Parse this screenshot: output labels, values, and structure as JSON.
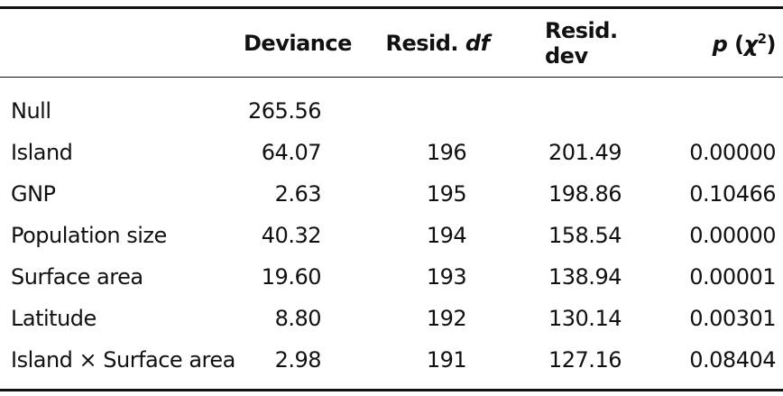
{
  "table": {
    "header": [
      [
        "Deviance"
      ],
      [
        "Resid. ",
        "df"
      ],
      [
        "Resid. dev"
      ],
      [
        "p",
        " (",
        "χ",
        "2",
        ")"
      ]
    ],
    "rows": [
      [
        "Null",
        "265.56",
        null,
        null,
        null
      ],
      [
        "Island",
        "64.07",
        "196",
        "201.49",
        "0.00000"
      ],
      [
        "GNP",
        "2.63",
        "195",
        "198.86",
        "0.10466"
      ],
      [
        "Population size",
        "40.32",
        "194",
        "158.54",
        "0.00000"
      ],
      [
        "Surface area",
        "19.60",
        "193",
        "138.94",
        "0.00001"
      ],
      [
        "Latitude",
        "8.80",
        "192",
        "130.14",
        "0.00301"
      ],
      [
        "Island × Surface area",
        "2.98",
        "191",
        "127.16",
        "0.08404"
      ]
    ]
  }
}
